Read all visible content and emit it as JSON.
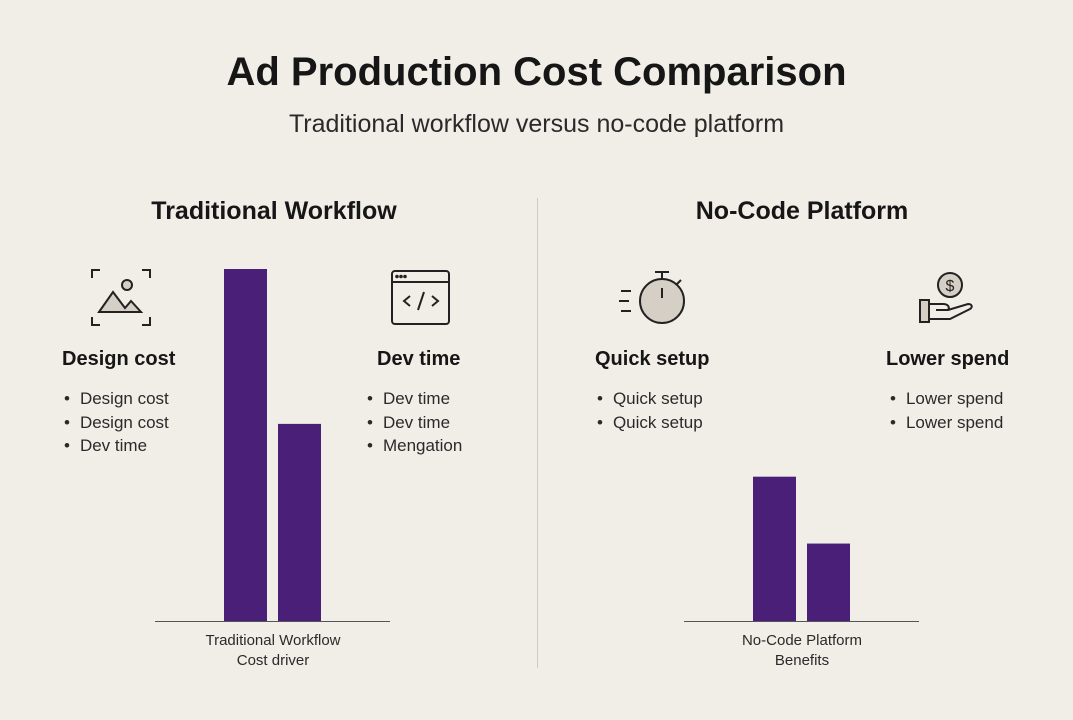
{
  "title": "Ad Production Cost Comparison",
  "subtitle": "Traditional workflow versus no-code platform",
  "colors": {
    "bar": "#4a1f78",
    "background": "#f1eee8",
    "icon_fill": "#d6cfc6"
  },
  "panels": [
    {
      "title": "Traditional Workflow",
      "caption_line1": "Traditional Workflow",
      "caption_line2": "Cost driver",
      "features": [
        {
          "icon": "image-frame-icon",
          "heading": "Design cost",
          "bullets": [
            "Design cost",
            "Design cost",
            "Dev time"
          ]
        },
        {
          "icon": "code-window-icon",
          "heading": "Dev time",
          "bullets": [
            "Dev time",
            "Dev time",
            "Mengation"
          ]
        }
      ]
    },
    {
      "title": "No-Code Platform",
      "caption_line1": "No-Code Platform",
      "caption_line2": "Benefits",
      "features": [
        {
          "icon": "stopwatch-icon",
          "heading": "Quick setup",
          "bullets": [
            "Quick setup",
            "Quick setup"
          ]
        },
        {
          "icon": "hand-coin-icon",
          "heading": "Lower spend",
          "bullets": [
            "Lower spend",
            "Lower spend"
          ]
        }
      ]
    }
  ],
  "chart_data": [
    {
      "type": "bar",
      "title": "Traditional Workflow",
      "xlabel": "Traditional Workflow Cost driver",
      "values": [
        100,
        56
      ],
      "ylim": [
        0,
        100
      ],
      "grid": false,
      "note_scale": "relative, no axis printed"
    },
    {
      "type": "bar",
      "title": "No-Code Platform",
      "xlabel": "No-Code Platform Benefits",
      "values": [
        41,
        22
      ],
      "ylim": [
        0,
        100
      ],
      "grid": false
    }
  ]
}
